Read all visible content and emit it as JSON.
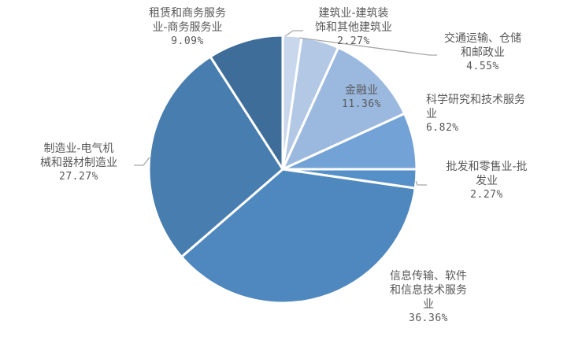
{
  "chart_data": {
    "type": "pie",
    "title": "",
    "start_angle_deg": 0,
    "direction": "clockwise",
    "slices": [
      {
        "label": "建筑业-建筑装饰和其他建筑业",
        "value": 2.27,
        "pct_label": "2.27%",
        "color": "#c9d7ec"
      },
      {
        "label": "交通运输、仓储和邮政业",
        "value": 4.55,
        "pct_label": "4.55%",
        "color": "#b3c8e5"
      },
      {
        "label": "金融业",
        "value": 11.36,
        "pct_label": "11.36%",
        "color": "#9bb9df"
      },
      {
        "label": "科学研究和技术服务业",
        "value": 6.82,
        "pct_label": "6.82%",
        "color": "#73a3d6"
      },
      {
        "label": "批发和零售业-批发业",
        "value": 2.27,
        "pct_label": "2.27%",
        "color": "#5590c9"
      },
      {
        "label": "信息传输、软件和信息技术服务业",
        "value": 36.36,
        "pct_label": "36.36%",
        "color": "#4f88be"
      },
      {
        "label": "制造业-电气机械和器材制造业",
        "value": 27.27,
        "pct_label": "27.27%",
        "color": "#477daf"
      },
      {
        "label": "租赁和商务服务业-商务服务业",
        "value": 9.09,
        "pct_label": "9.09%",
        "color": "#3f6d99"
      }
    ],
    "legend": "none",
    "labels": "outside with leader lines (金融业 inside)"
  },
  "labels": {
    "construction": {
      "line1": "建筑业-建筑装",
      "line2": "饰和其他建筑业",
      "pct": "2.27%"
    },
    "transport": {
      "line1": "交通运输、仓储",
      "line2": "和邮政业",
      "pct": "4.55%"
    },
    "finance": {
      "line1": "金融业",
      "pct": "11.36%"
    },
    "science": {
      "line1": "科学研究和技术服务",
      "line2": "业",
      "pct": "6.82%"
    },
    "wholesale": {
      "line1": "批发和零售业-批",
      "line2": "发业",
      "pct": "2.27%"
    },
    "it": {
      "line1": "信息传输、软件",
      "line2": "和信息技术服务",
      "line3": "业",
      "pct": "36.36%"
    },
    "manufacturing": {
      "line1": "制造业-电气机",
      "line2": "械和器材制造业",
      "pct": "27.27%"
    },
    "leasing": {
      "line1": "租赁和商务服务",
      "line2": "业-商务服务业",
      "pct": "9.09%"
    }
  }
}
